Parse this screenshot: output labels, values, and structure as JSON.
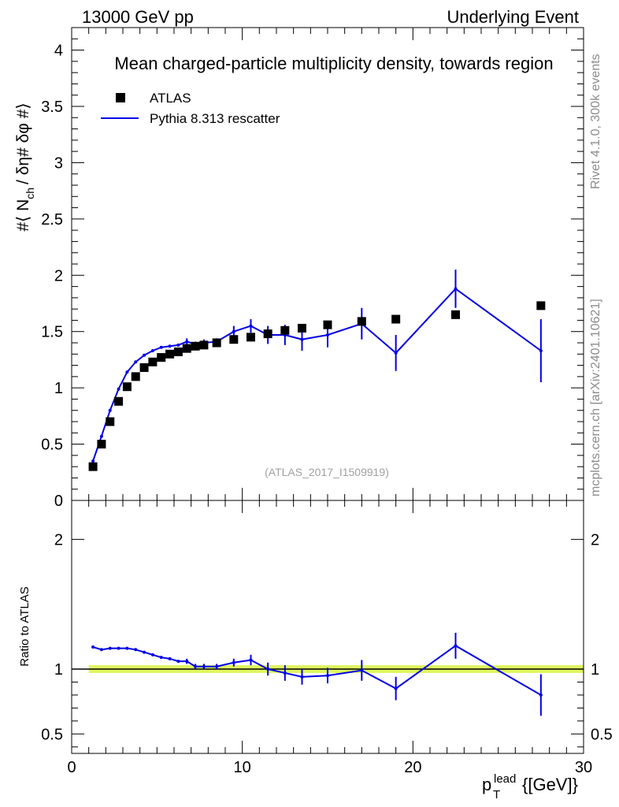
{
  "header": {
    "left": "13000 GeV pp",
    "right": "Underlying Event"
  },
  "side_labels": {
    "rivet": "Rivet 4.1.0,  300k events",
    "mcplots": "mcplots.cern.ch [arXiv:2401.10621]"
  },
  "chart_data": [
    {
      "type": "scatter",
      "title": "Mean charged-particle multiplicity density, towards region",
      "watermark": "(ATLAS_2017_I1509919)",
      "ylabel": "#⟨ N_ch / δη# δφ #⟩",
      "ylabel_parts": {
        "main": "#⟨ N",
        "sub": "ch",
        "rest": "/ δη# δφ #⟩"
      },
      "xlim": [
        0,
        30
      ],
      "ylim": [
        0,
        4.2
      ],
      "yticks": [
        0,
        0.5,
        1,
        1.5,
        2,
        2.5,
        3,
        3.5,
        4
      ],
      "ytick_labels": [
        "0",
        "0.5",
        "1",
        "1.5",
        "2",
        "2.5",
        "3",
        "3.5",
        "4"
      ],
      "legend": [
        {
          "label": "ATLAS",
          "marker": "square",
          "color": "#000000"
        },
        {
          "label": "Pythia 8.313 rescatter",
          "marker": "line",
          "color": "#0000e6"
        }
      ],
      "legend_position": "top-left",
      "series": [
        {
          "name": "ATLAS",
          "x": [
            1.25,
            1.75,
            2.25,
            2.75,
            3.25,
            3.75,
            4.25,
            4.75,
            5.25,
            5.75,
            6.25,
            6.75,
            7.25,
            7.75,
            8.5,
            9.5,
            10.5,
            11.5,
            12.5,
            13.5,
            15,
            17,
            19,
            22.5,
            27.5
          ],
          "y": [
            0.3,
            0.5,
            0.7,
            0.88,
            1.01,
            1.1,
            1.18,
            1.23,
            1.27,
            1.3,
            1.32,
            1.35,
            1.37,
            1.38,
            1.4,
            1.43,
            1.45,
            1.48,
            1.51,
            1.53,
            1.56,
            1.59,
            1.61,
            1.65,
            1.73
          ]
        },
        {
          "name": "Pythia 8.313 rescatter",
          "x": [
            1.25,
            1.75,
            2.25,
            2.75,
            3.25,
            3.75,
            4.25,
            4.75,
            5.25,
            5.75,
            6.25,
            6.75,
            7.25,
            7.75,
            8.5,
            9.5,
            10.5,
            11.5,
            12.5,
            13.5,
            15,
            17,
            19,
            22.5,
            27.5
          ],
          "y": [
            0.35,
            0.57,
            0.8,
            0.99,
            1.14,
            1.23,
            1.29,
            1.33,
            1.36,
            1.37,
            1.38,
            1.41,
            1.39,
            1.4,
            1.41,
            1.5,
            1.55,
            1.47,
            1.47,
            1.43,
            1.47,
            1.57,
            1.31,
            1.88,
            1.33
          ],
          "err": [
            0.01,
            0.01,
            0.01,
            0.01,
            0.01,
            0.01,
            0.01,
            0.01,
            0.01,
            0.01,
            0.01,
            0.03,
            0.02,
            0.03,
            0.03,
            0.05,
            0.06,
            0.08,
            0.09,
            0.1,
            0.11,
            0.14,
            0.16,
            0.17,
            0.28
          ]
        }
      ]
    },
    {
      "type": "scatter",
      "title": "",
      "xlabel_parts": {
        "p": "p",
        "sub": "T",
        "sup": "lead",
        "rest": "{[GeV]}"
      },
      "xlabel": "p_T^lead {[GeV]}",
      "ylabel": "Ratio to ATLAS",
      "xlim": [
        0,
        30
      ],
      "ylim": [
        0.35,
        2.3
      ],
      "xticks": [
        0,
        10,
        20,
        30
      ],
      "xtick_labels": [
        "0",
        "10",
        "20",
        "30"
      ],
      "yticks": [
        0.5,
        1,
        2
      ],
      "ytick_labels": [
        "0.5",
        "1",
        "2"
      ],
      "reference_line": 1,
      "reference_band": {
        "lo": 0.97,
        "hi": 1.03,
        "color": "#d9f542"
      },
      "series": [
        {
          "name": "Pythia 8.313 rescatter",
          "x": [
            1.25,
            1.75,
            2.25,
            2.75,
            3.25,
            3.75,
            4.25,
            4.75,
            5.25,
            5.75,
            6.25,
            6.75,
            7.25,
            7.75,
            8.5,
            9.5,
            10.5,
            11.5,
            12.5,
            13.5,
            15,
            17,
            19,
            22.5,
            27.5
          ],
          "y": [
            1.17,
            1.15,
            1.16,
            1.16,
            1.16,
            1.15,
            1.13,
            1.11,
            1.09,
            1.08,
            1.06,
            1.06,
            1.02,
            1.02,
            1.02,
            1.05,
            1.07,
            1.0,
            0.97,
            0.94,
            0.95,
            0.99,
            0.85,
            1.18,
            0.8
          ],
          "err": [
            0.01,
            0.01,
            0.01,
            0.01,
            0.01,
            0.01,
            0.01,
            0.01,
            0.01,
            0.01,
            0.01,
            0.02,
            0.02,
            0.02,
            0.02,
            0.03,
            0.04,
            0.05,
            0.06,
            0.06,
            0.06,
            0.08,
            0.09,
            0.1,
            0.16
          ]
        }
      ]
    }
  ]
}
